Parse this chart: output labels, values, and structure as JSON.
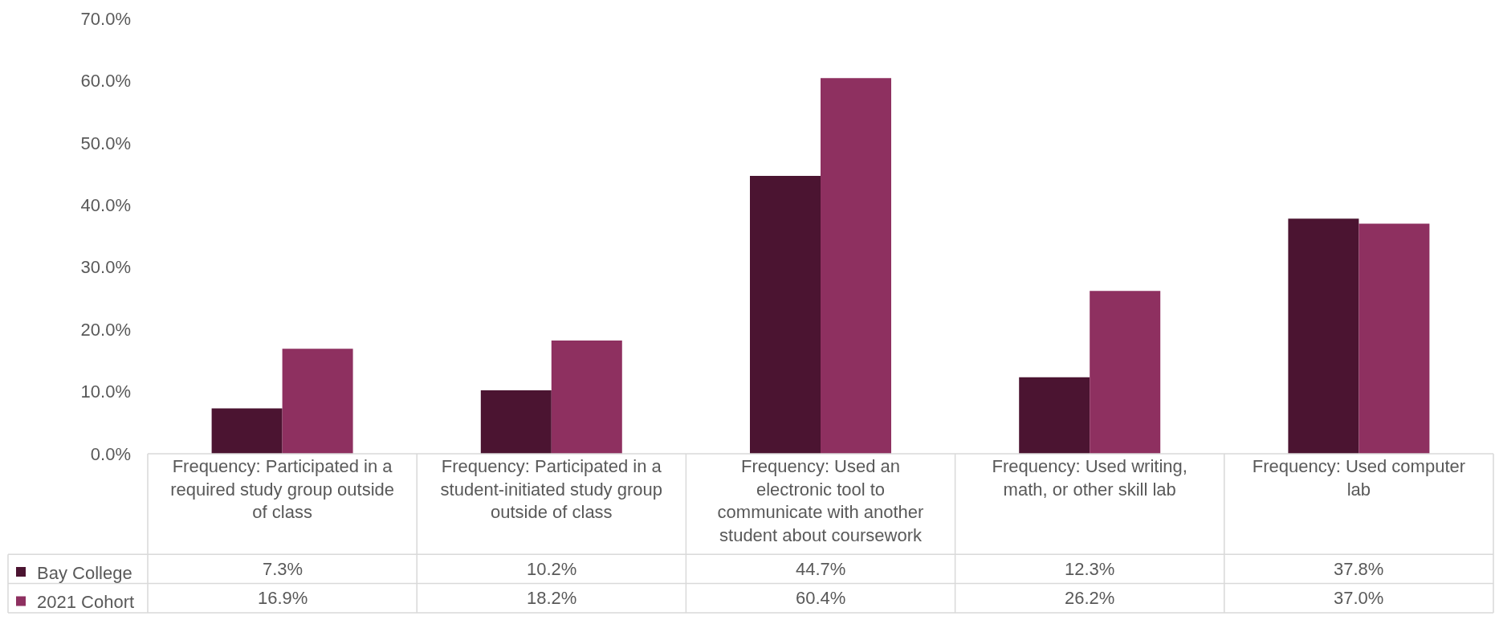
{
  "chart_data": {
    "type": "bar",
    "categories": [
      "Frequency: Participated in a required study group outside of class",
      "Frequency: Participated in a student-initiated study group outside of class",
      "Frequency: Used an electronic tool to communicate with another student about coursework",
      "Frequency: Used writing, math, or other skill lab",
      "Frequency: Used computer lab"
    ],
    "series": [
      {
        "name": "Bay College",
        "color": "#4b1431",
        "values": [
          7.3,
          10.2,
          44.7,
          12.3,
          37.8
        ],
        "value_labels": [
          "7.3%",
          "10.2%",
          "44.7%",
          "12.3%",
          "37.8%"
        ]
      },
      {
        "name": "2021 Cohort",
        "color": "#8e3060",
        "values": [
          16.9,
          18.2,
          60.4,
          26.2,
          37.0
        ],
        "value_labels": [
          "16.9%",
          "18.2%",
          "60.4%",
          "26.2%",
          "37.0%"
        ]
      }
    ],
    "ylim": [
      0,
      70
    ],
    "yticks": [
      {
        "value": 0,
        "label": "0.0%"
      },
      {
        "value": 10,
        "label": "10.0%"
      },
      {
        "value": 20,
        "label": "20.0%"
      },
      {
        "value": 30,
        "label": "30.0%"
      },
      {
        "value": 40,
        "label": "40.0%"
      },
      {
        "value": 50,
        "label": "50.0%"
      },
      {
        "value": 60,
        "label": "60.0%"
      },
      {
        "value": 70,
        "label": "70.0%"
      }
    ],
    "legend": "bottom left"
  }
}
